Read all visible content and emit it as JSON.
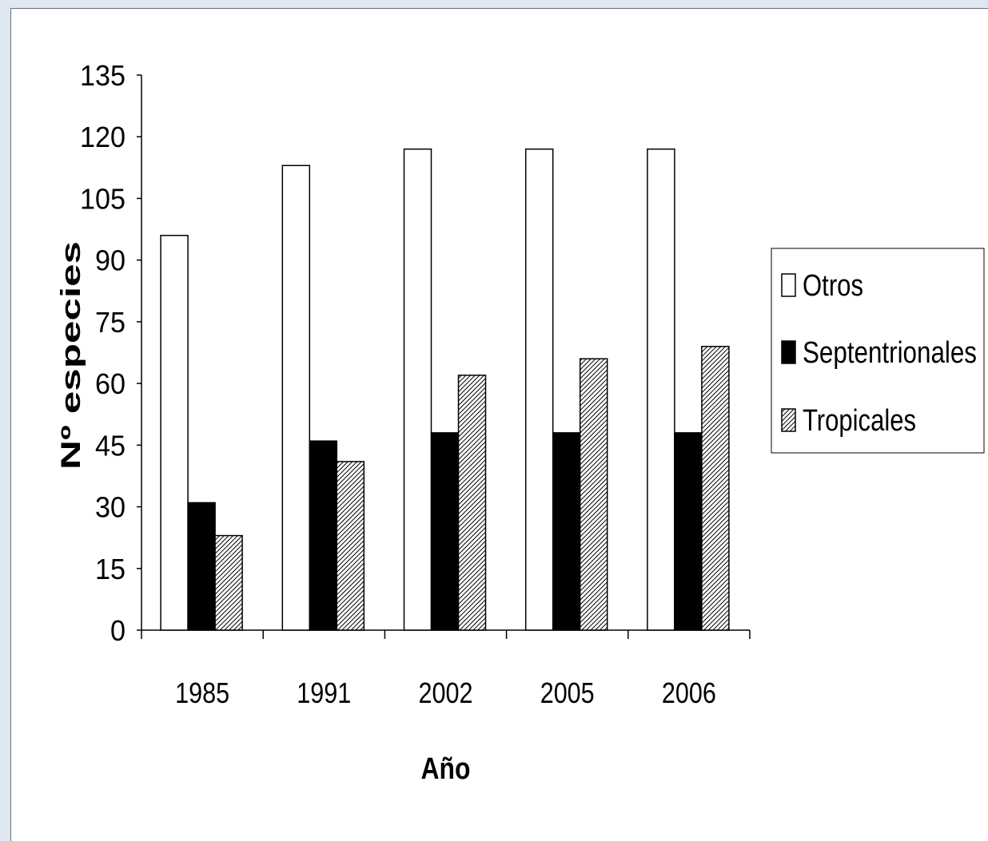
{
  "chart_data": {
    "type": "bar",
    "title": "",
    "xlabel": "Año",
    "ylabel": "Nº especies",
    "ylim": [
      0,
      135
    ],
    "yticks": [
      0,
      15,
      30,
      45,
      60,
      75,
      90,
      105,
      120,
      135
    ],
    "categories": [
      "1985",
      "1991",
      "2002",
      "2005",
      "2006"
    ],
    "series": [
      {
        "name": "Otros",
        "values": [
          96,
          113,
          117,
          117,
          117
        ],
        "fill": "#ffffff"
      },
      {
        "name": "Septentrionales",
        "values": [
          31,
          46,
          48,
          48,
          48
        ],
        "fill": "#000000"
      },
      {
        "name": "Tropicales",
        "values": [
          23,
          41,
          62,
          66,
          69
        ],
        "fill": "hatch"
      }
    ],
    "legend_position": "right",
    "grid": false
  }
}
